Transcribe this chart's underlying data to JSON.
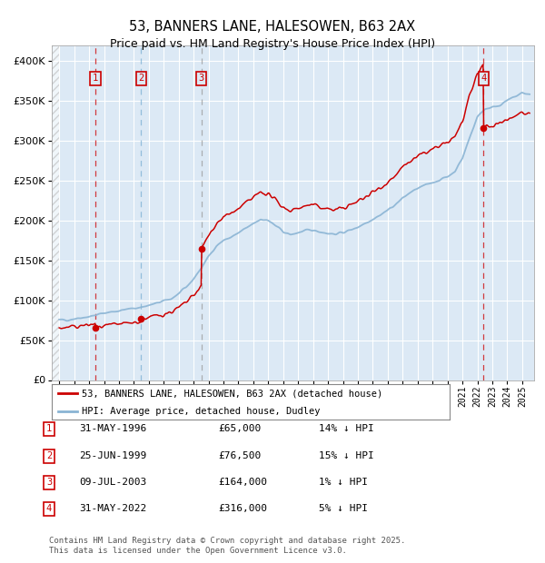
{
  "title_line1": "53, BANNERS LANE, HALESOWEN, B63 2AX",
  "title_line2": "Price paid vs. HM Land Registry's House Price Index (HPI)",
  "bg_color": "#dce9f5",
  "red_line_color": "#cc0000",
  "blue_line_color": "#8ab4d4",
  "purchases": [
    {
      "label": "1",
      "date_x": 1996.42,
      "price": 65000,
      "vline_color": "#cc0000",
      "vline_style": "red"
    },
    {
      "label": "2",
      "date_x": 1999.49,
      "price": 76500,
      "vline_color": "#8ab4d4",
      "vline_style": "blue"
    },
    {
      "label": "3",
      "date_x": 2003.52,
      "price": 164000,
      "vline_color": "#888888",
      "vline_style": "gray"
    },
    {
      "label": "4",
      "date_x": 2022.42,
      "price": 316000,
      "vline_color": "#cc0000",
      "vline_style": "red"
    }
  ],
  "legend_entries": [
    {
      "color": "#cc0000",
      "label": "53, BANNERS LANE, HALESOWEN, B63 2AX (detached house)"
    },
    {
      "color": "#8ab4d4",
      "label": "HPI: Average price, detached house, Dudley"
    }
  ],
  "table_rows": [
    {
      "num": "1",
      "date": "31-MAY-1996",
      "price": "£65,000",
      "hpi": "14% ↓ HPI"
    },
    {
      "num": "2",
      "date": "25-JUN-1999",
      "price": "£76,500",
      "hpi": "15% ↓ HPI"
    },
    {
      "num": "3",
      "date": "09-JUL-2003",
      "price": "£164,000",
      "hpi": "1% ↓ HPI"
    },
    {
      "num": "4",
      "date": "31-MAY-2022",
      "price": "£316,000",
      "hpi": "5% ↓ HPI"
    }
  ],
  "footer": "Contains HM Land Registry data © Crown copyright and database right 2025.\nThis data is licensed under the Open Government Licence v3.0.",
  "ylim": [
    0,
    420000
  ],
  "xlim_start": 1993.5,
  "xlim_end": 2025.8,
  "hpi_years": [
    1993.5,
    1994.0,
    1994.5,
    1995.0,
    1995.5,
    1996.0,
    1996.5,
    1997.0,
    1997.5,
    1998.0,
    1998.5,
    1999.0,
    1999.5,
    2000.0,
    2000.5,
    2001.0,
    2001.5,
    2002.0,
    2002.5,
    2003.0,
    2003.5,
    2004.0,
    2004.5,
    2005.0,
    2005.5,
    2006.0,
    2006.5,
    2007.0,
    2007.5,
    2008.0,
    2008.5,
    2009.0,
    2009.5,
    2010.0,
    2010.5,
    2011.0,
    2011.5,
    2012.0,
    2012.5,
    2013.0,
    2013.5,
    2014.0,
    2014.5,
    2015.0,
    2015.5,
    2016.0,
    2016.5,
    2017.0,
    2017.5,
    2018.0,
    2018.5,
    2019.0,
    2019.5,
    2020.0,
    2020.5,
    2021.0,
    2021.5,
    2022.0,
    2022.5,
    2023.0,
    2023.5,
    2024.0,
    2024.5,
    2025.0,
    2025.5
  ],
  "hpi_values": [
    73000,
    75000,
    75500,
    77000,
    78500,
    79500,
    81500,
    84000,
    85500,
    87000,
    88500,
    90000,
    91500,
    93500,
    96000,
    99000,
    102000,
    108000,
    116000,
    127000,
    140000,
    155000,
    168000,
    175000,
    179000,
    184000,
    190000,
    196000,
    202000,
    200000,
    193000,
    186000,
    182000,
    185000,
    187000,
    188000,
    186000,
    184000,
    183000,
    185000,
    188000,
    192000,
    197000,
    202000,
    207000,
    213000,
    220000,
    228000,
    235000,
    240000,
    244000,
    248000,
    251000,
    255000,
    262000,
    278000,
    305000,
    330000,
    340000,
    342000,
    345000,
    350000,
    355000,
    360000,
    358000
  ]
}
